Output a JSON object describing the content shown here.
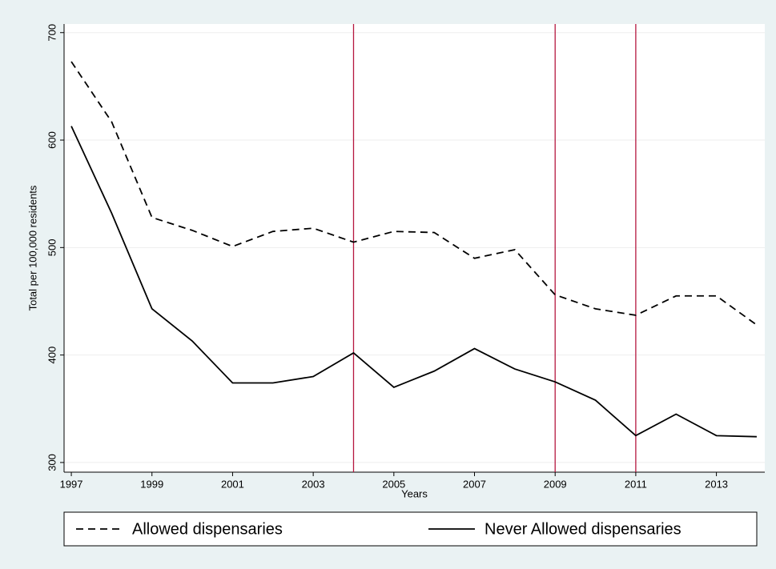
{
  "chart_data": {
    "type": "line",
    "x": [
      1997,
      1998,
      1999,
      2000,
      2001,
      2002,
      2003,
      2004,
      2005,
      2006,
      2007,
      2008,
      2009,
      2010,
      2011,
      2012,
      2013,
      2014
    ],
    "series": [
      {
        "name": "Allowed dispensaries",
        "color": "#000000",
        "dash": true,
        "values": [
          673,
          617,
          528,
          516,
          501,
          515,
          518,
          505,
          515,
          514,
          490,
          498,
          456,
          443,
          437,
          455,
          455,
          428
        ]
      },
      {
        "name": "Never Allowed dispensaries",
        "color": "#000000",
        "dash": false,
        "values": [
          613,
          532,
          443,
          413,
          374,
          374,
          380,
          402,
          370,
          385,
          406,
          387,
          375,
          358,
          325,
          345,
          325,
          324
        ]
      }
    ],
    "xlabel": "Years",
    "ylabel": "Total per 100,000 residents",
    "xlim": [
      1996.82,
      2014.2
    ],
    "ylim": [
      291,
      708
    ],
    "xticks": [
      1997,
      1999,
      2001,
      2003,
      2005,
      2007,
      2009,
      2011,
      2013
    ],
    "yticks": [
      300,
      400,
      500,
      600,
      700
    ],
    "grid": true,
    "vlines": [
      2004,
      2009,
      2011
    ],
    "vline_color": "#b5173f",
    "legend": "bottom"
  }
}
